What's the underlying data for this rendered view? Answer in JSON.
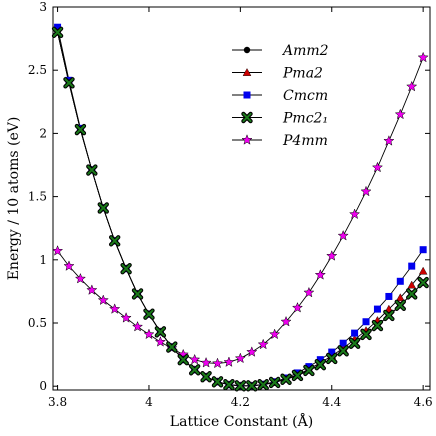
{
  "chart_data": {
    "type": "line",
    "title": "",
    "xlabel": "Lattice Constant (Å)",
    "ylabel": "Energy / 10 atoms (eV)",
    "xlim": [
      3.79,
      4.615
    ],
    "ylim": [
      -0.03,
      3.0
    ],
    "xticks": [
      3.8,
      4.0,
      4.2,
      4.4,
      4.6
    ],
    "xtick_labels": [
      "3.8",
      "4",
      "4.2",
      "4.4",
      "4.6"
    ],
    "yticks": [
      0,
      0.5,
      1,
      1.5,
      2,
      2.5,
      3
    ],
    "ytick_labels": [
      "0",
      "0.5",
      "1",
      "1.5",
      "2",
      "2.5",
      "3"
    ],
    "grid": false,
    "legend_position": "top-right",
    "x": [
      3.8,
      3.825,
      3.85,
      3.875,
      3.9,
      3.925,
      3.95,
      3.975,
      4.0,
      4.025,
      4.05,
      4.075,
      4.1,
      4.125,
      4.15,
      4.175,
      4.2,
      4.225,
      4.25,
      4.275,
      4.3,
      4.325,
      4.35,
      4.375,
      4.4,
      4.425,
      4.45,
      4.475,
      4.5,
      4.525,
      4.55,
      4.575,
      4.6
    ],
    "series": [
      {
        "name": "Amm2",
        "marker": "circle",
        "color": "#000000",
        "values": [
          2.8,
          2.4,
          2.03,
          1.71,
          1.41,
          1.15,
          0.93,
          0.73,
          0.57,
          0.43,
          0.31,
          0.21,
          0.13,
          0.075,
          0.035,
          0.012,
          0.003,
          0.003,
          0.012,
          0.03,
          0.055,
          0.085,
          0.125,
          0.17,
          0.22,
          0.28,
          0.34,
          0.41,
          0.48,
          0.56,
          0.64,
          0.73,
          0.82
        ]
      },
      {
        "name": "Pma2",
        "marker": "triangle",
        "color": "#cc0000",
        "values": [
          2.8,
          2.4,
          2.03,
          1.71,
          1.41,
          1.15,
          0.93,
          0.73,
          0.57,
          0.43,
          0.31,
          0.21,
          0.13,
          0.075,
          0.035,
          0.012,
          0.003,
          0.003,
          0.012,
          0.03,
          0.06,
          0.09,
          0.135,
          0.185,
          0.24,
          0.3,
          0.37,
          0.44,
          0.52,
          0.61,
          0.7,
          0.8,
          0.91
        ]
      },
      {
        "name": "Cmcm",
        "marker": "square",
        "color": "#0000ee",
        "values": [
          2.84,
          2.42,
          2.04,
          1.71,
          1.41,
          1.15,
          0.93,
          0.73,
          0.57,
          0.43,
          0.31,
          0.21,
          0.13,
          0.075,
          0.035,
          0.012,
          0.003,
          0.003,
          0.015,
          0.035,
          0.065,
          0.105,
          0.155,
          0.21,
          0.27,
          0.34,
          0.42,
          0.51,
          0.61,
          0.71,
          0.83,
          0.95,
          1.08
        ]
      },
      {
        "name": "Pmc2₁",
        "marker": "x",
        "color": "#1a7a1a",
        "values": [
          2.8,
          2.4,
          2.03,
          1.71,
          1.41,
          1.15,
          0.93,
          0.73,
          0.57,
          0.43,
          0.31,
          0.21,
          0.13,
          0.075,
          0.035,
          0.012,
          0.003,
          0.003,
          0.012,
          0.03,
          0.055,
          0.085,
          0.125,
          0.17,
          0.22,
          0.28,
          0.34,
          0.41,
          0.48,
          0.56,
          0.64,
          0.73,
          0.82
        ]
      },
      {
        "name": "P4mm",
        "marker": "star",
        "color": "#ee00ee",
        "values": [
          1.07,
          0.95,
          0.85,
          0.76,
          0.68,
          0.61,
          0.54,
          0.47,
          0.41,
          0.35,
          0.3,
          0.25,
          0.21,
          0.185,
          0.18,
          0.19,
          0.22,
          0.27,
          0.33,
          0.41,
          0.51,
          0.62,
          0.74,
          0.88,
          1.03,
          1.19,
          1.36,
          1.54,
          1.73,
          1.94,
          2.15,
          2.37,
          2.6
        ]
      }
    ]
  }
}
